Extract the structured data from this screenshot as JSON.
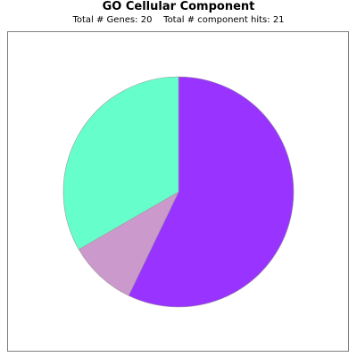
{
  "chart_data": {
    "type": "pie",
    "title": "GO Cellular Component",
    "subtitle": {
      "genes_label": "Total # Genes:",
      "genes_value": "20",
      "hits_label": "Total # component hits:",
      "hits_value": "21"
    },
    "slices": [
      {
        "value": 12,
        "color": "#9933FF"
      },
      {
        "value": 2,
        "color": "#CC99CC"
      },
      {
        "value": 7,
        "color": "#66FFCC"
      }
    ],
    "start_angle_deg": 90,
    "direction": "clockwise",
    "legend": "none"
  }
}
